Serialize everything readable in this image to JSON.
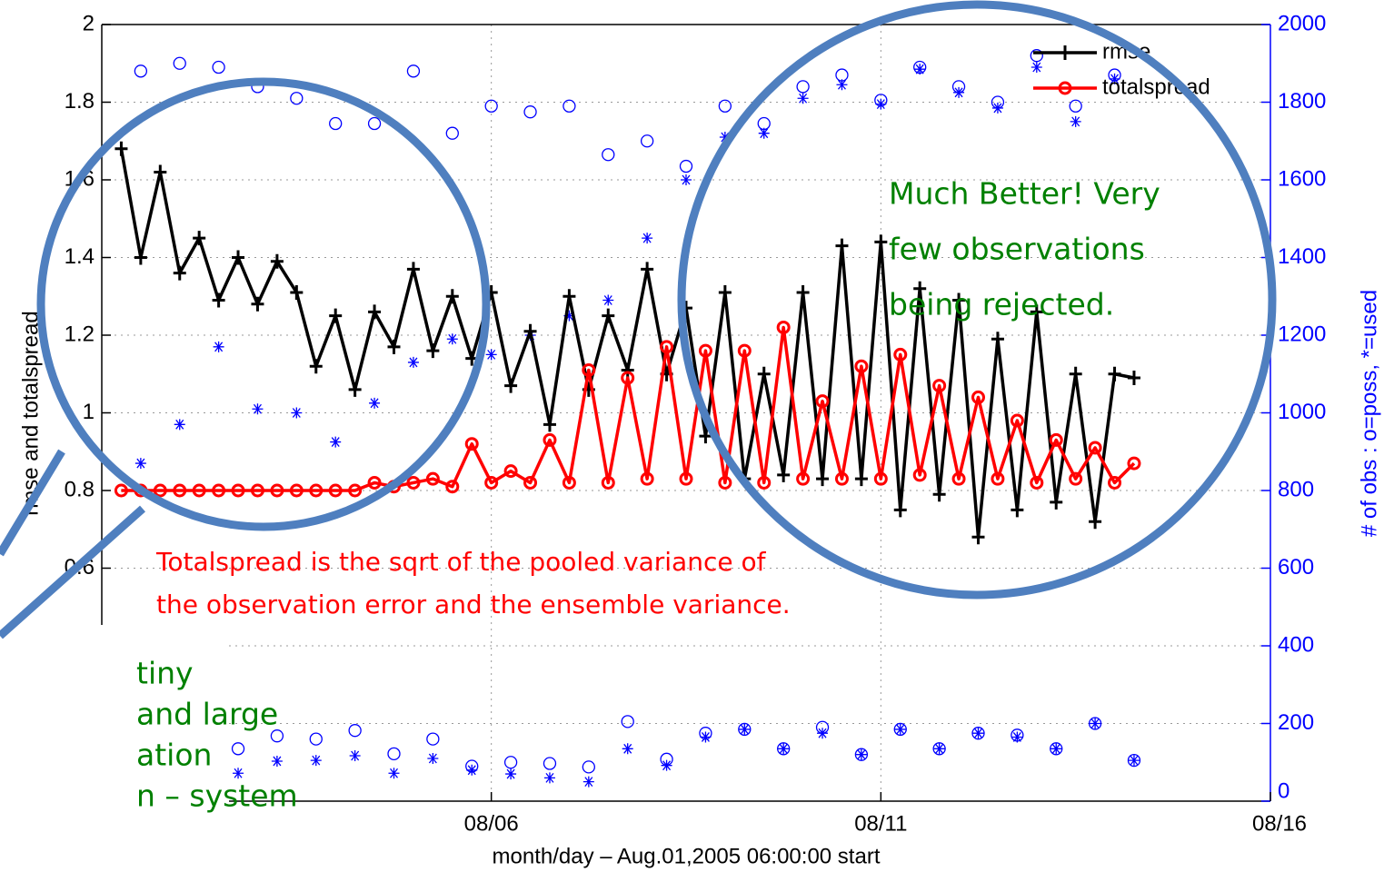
{
  "chart_data": {
    "type": "line",
    "ylabel": "rmse and totalspread",
    "y2label": "# of obs : o=poss, *=used",
    "xlabel": "month/day – Aug.01,2005 06:00:00 start",
    "xlim": [
      1,
      16
    ],
    "xticks": [
      {
        "value": 6,
        "label": "08/06"
      },
      {
        "value": 11,
        "label": "08/11"
      },
      {
        "value": 16,
        "label": "08/16"
      }
    ],
    "ylim": [
      0,
      2
    ],
    "yticks": [
      0.6,
      0.8,
      1,
      1.2,
      1.4,
      1.6,
      1.8,
      2
    ],
    "y2lim": [
      0,
      2000
    ],
    "y2ticks": [
      0,
      200,
      400,
      600,
      800,
      1000,
      1200,
      1400,
      1600,
      1800,
      2000
    ],
    "y2color": "#0000ff",
    "grid": true,
    "legend": "upper right",
    "x": [
      1.25,
      1.5,
      1.75,
      2,
      2.25,
      2.5,
      2.75,
      3,
      3.25,
      3.5,
      3.75,
      4,
      4.25,
      4.5,
      4.75,
      5,
      5.25,
      5.5,
      5.75,
      6,
      6.25,
      6.5,
      6.75,
      7,
      7.25,
      7.5,
      7.75,
      8,
      8.25,
      8.5,
      8.75,
      9,
      9.25,
      9.5,
      9.75,
      10,
      10.25,
      10.5,
      10.75,
      11,
      11.25,
      11.5,
      11.75,
      12,
      12.25,
      12.5,
      12.75,
      13,
      13.25,
      13.5,
      13.75,
      14,
      14.25
    ],
    "series": [
      {
        "name": "rmse",
        "color": "#000000",
        "line": true,
        "marker": "plus",
        "values": [
          1.68,
          1.4,
          1.62,
          1.36,
          1.45,
          1.29,
          1.4,
          1.28,
          1.39,
          1.31,
          1.12,
          1.25,
          1.06,
          1.26,
          1.17,
          1.37,
          1.16,
          1.3,
          1.14,
          1.31,
          1.07,
          1.21,
          0.97,
          1.3,
          1.06,
          1.25,
          1.11,
          1.37,
          1.1,
          1.27,
          0.94,
          1.31,
          0.83,
          1.1,
          0.84,
          1.31,
          0.83,
          1.43,
          0.83,
          1.44,
          0.75,
          1.32,
          0.79,
          1.29,
          0.68,
          1.19,
          0.75,
          1.26,
          0.77,
          1.1,
          0.72,
          1.1,
          1.09
        ]
      },
      {
        "name": "totalspread",
        "color": "#ff0000",
        "line": true,
        "marker": "circle",
        "values": [
          0.8,
          0.8,
          0.8,
          0.8,
          0.8,
          0.8,
          0.8,
          0.8,
          0.8,
          0.8,
          0.8,
          0.8,
          0.8,
          0.82,
          0.81,
          0.82,
          0.83,
          0.81,
          0.92,
          0.82,
          0.85,
          0.82,
          0.93,
          0.82,
          1.11,
          0.82,
          1.09,
          0.83,
          1.17,
          0.83,
          1.16,
          0.82,
          1.16,
          0.82,
          1.22,
          0.83,
          1.03,
          0.83,
          1.12,
          0.83,
          1.15,
          0.84,
          1.07,
          0.83,
          1.04,
          0.83,
          0.98,
          0.82,
          0.93,
          0.83,
          0.91,
          0.82,
          0.87
        ]
      },
      {
        "color": "#0000ff",
        "axis": "y2",
        "line": false,
        "marker": "circle",
        "values": [
          null,
          1880,
          null,
          1900,
          null,
          1890,
          135,
          1840,
          168,
          1810,
          160,
          1745,
          182,
          1745,
          122,
          1880,
          160,
          1720,
          90,
          1790,
          100,
          1775,
          97,
          1790,
          88,
          1665,
          205,
          1700,
          108,
          1635,
          175,
          1790,
          185,
          1745,
          135,
          1840,
          190,
          1870,
          120,
          1805,
          185,
          1890,
          135,
          1840,
          175,
          1800,
          170,
          1920,
          135,
          1790,
          200,
          1870,
          105
        ]
      },
      {
        "color": "#0000ff",
        "axis": "y2",
        "line": false,
        "marker": "star",
        "values": [
          null,
          870,
          null,
          970,
          null,
          1170,
          72,
          1010,
          103,
          1000,
          105,
          925,
          117,
          1025,
          72,
          1130,
          110,
          1190,
          80,
          1150,
          70,
          1200,
          60,
          1250,
          50,
          1290,
          135,
          1450,
          92,
          1600,
          165,
          1710,
          185,
          1720,
          135,
          1810,
          175,
          1845,
          120,
          1795,
          185,
          1885,
          135,
          1825,
          175,
          1785,
          165,
          1890,
          135,
          1750,
          200,
          1860,
          105
        ]
      }
    ],
    "annotations": [
      {
        "color": "#008000",
        "lines": [
          "Much Better! Very",
          "few observations",
          "being rejected."
        ]
      },
      {
        "color": "#ff0000",
        "lines": [
          "Totalspread is the sqrt of the pooled variance of",
          "the observation error and the ensemble variance."
        ]
      },
      {
        "color": "#008000",
        "lines": [
          "tiny",
          "and large",
          "ation",
          "n – system"
        ]
      }
    ]
  }
}
